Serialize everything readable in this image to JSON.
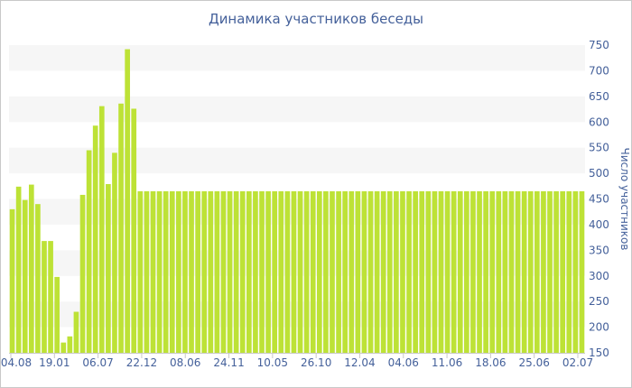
{
  "chart_data": {
    "type": "bar",
    "title": "Динамика участников беседы",
    "ylabel": "Число участников",
    "xlabel": "",
    "ylim": [
      150,
      750
    ],
    "y_ticks": [
      150,
      200,
      250,
      300,
      350,
      400,
      450,
      500,
      550,
      600,
      650,
      700,
      750
    ],
    "x_tick_labels": [
      "04.08",
      "19.01",
      "06.07",
      "22.12",
      "08.06",
      "24.11",
      "10.05",
      "26.10",
      "12.04",
      "04.06",
      "11.06",
      "18.06",
      "25.06",
      "02.07"
    ],
    "bar_color": "#bde236",
    "band_color": "#f6f6f6",
    "values": [
      430,
      474,
      448,
      478,
      440,
      368,
      368,
      298,
      170,
      182,
      230,
      458,
      545,
      593,
      631,
      479,
      540,
      636,
      742,
      626,
      465,
      465,
      465,
      465,
      465,
      465,
      465,
      465,
      465,
      465,
      465,
      465,
      465,
      465,
      465,
      465,
      465,
      465,
      465,
      465,
      465,
      465,
      465,
      465,
      465,
      465,
      465,
      465,
      465,
      465,
      465,
      465,
      465,
      465,
      465,
      465,
      465,
      465,
      465,
      465,
      465,
      465,
      465,
      465,
      465,
      465,
      465,
      465,
      465,
      465,
      465,
      465,
      465,
      465,
      465,
      465,
      465,
      465,
      465,
      465,
      465,
      465,
      465,
      465,
      465,
      465,
      465,
      465,
      465,
      465
    ]
  }
}
